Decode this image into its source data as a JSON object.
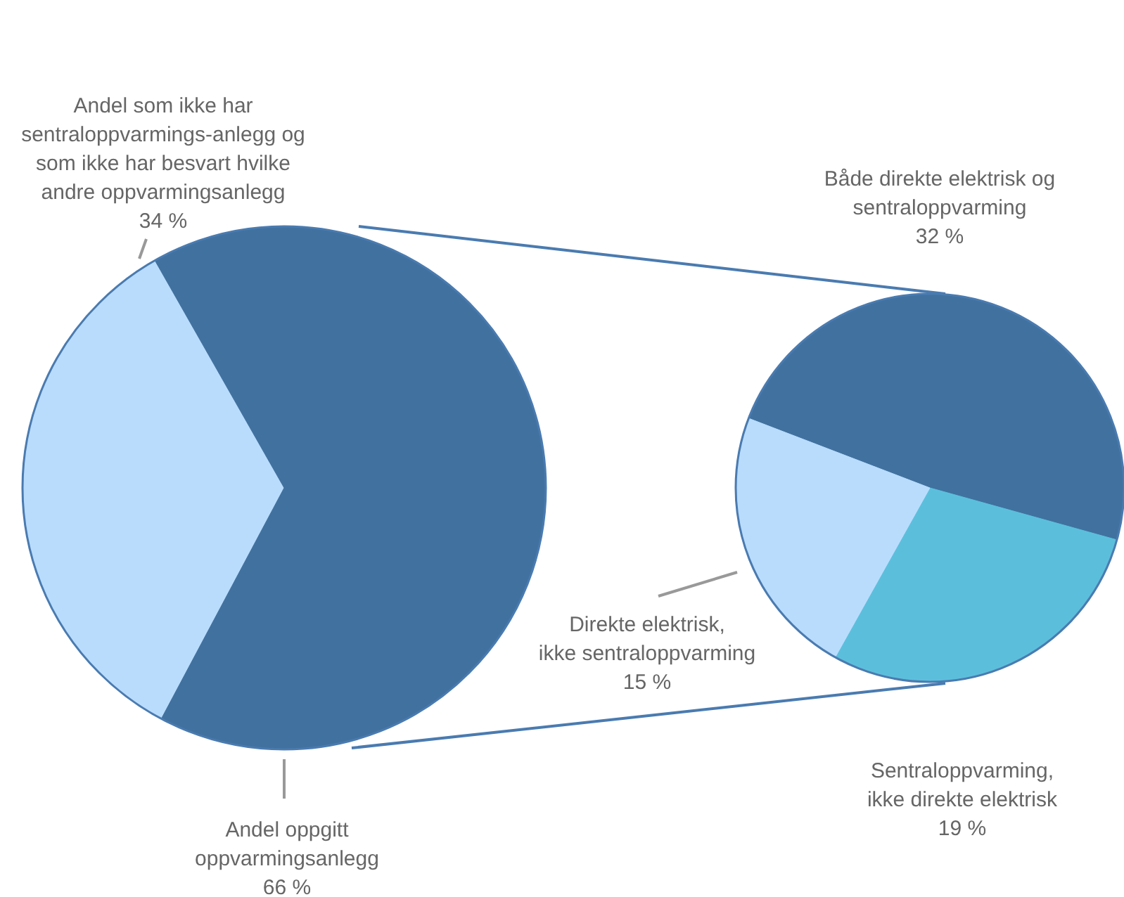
{
  "chart_data": [
    {
      "type": "pie",
      "categories": [
        "Andel som ikke har\nsentraloppvarmings-anlegg og\nsom ikke har besvart hvilke\nandre oppvarmingsanlegg",
        "Andel oppgitt\noppvarmingsanlegg"
      ],
      "values": [
        34,
        66
      ],
      "value_labels": [
        "34 %",
        "66 %"
      ],
      "colors": [
        "#b9dcfd",
        "#41719f"
      ]
    },
    {
      "type": "pie",
      "categories": [
        "Både direkte elektrisk og\nsentraloppvarming",
        "Sentraloppvarming,\nikke direkte elektrisk",
        "Direkte elektrisk,\nikke sentraloppvarming"
      ],
      "values": [
        32,
        19,
        15
      ],
      "value_labels": [
        "32 %",
        "19 %",
        "15 %"
      ],
      "colors": [
        "#41719f",
        "#5bbfdc",
        "#b9dcfd"
      ]
    }
  ]
}
